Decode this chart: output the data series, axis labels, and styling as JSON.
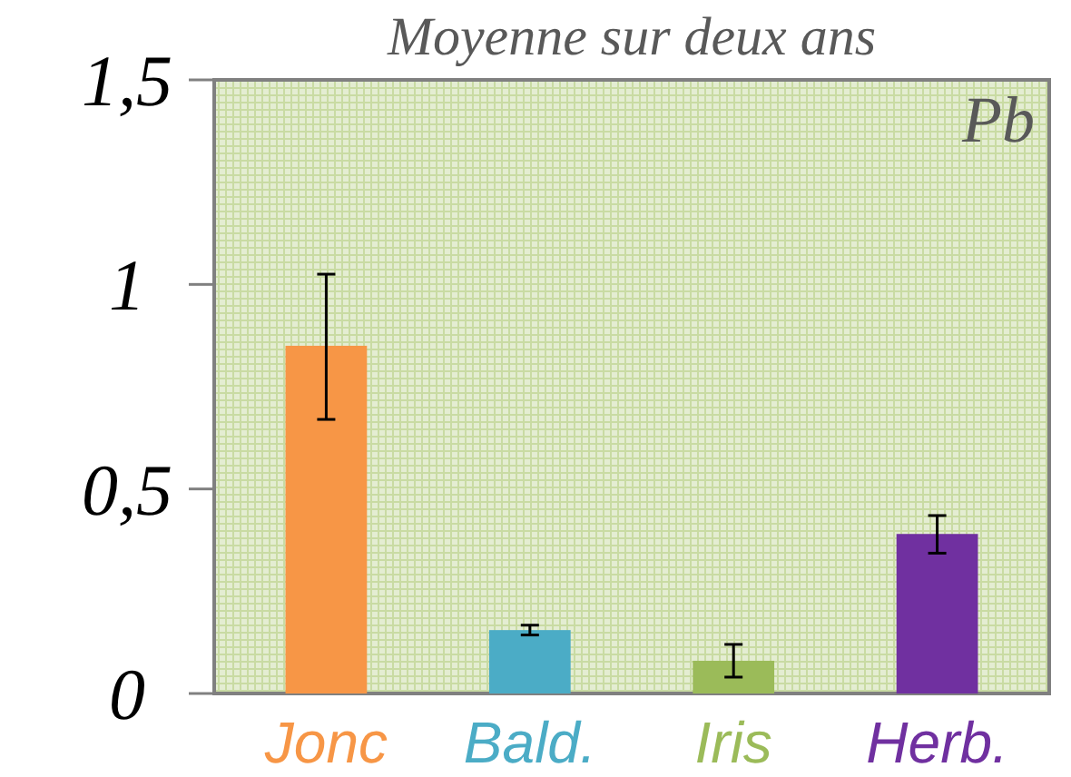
{
  "chart_data": {
    "type": "bar",
    "title": "Moyenne sur deux ans",
    "annotations": [
      "Pb"
    ],
    "categories": [
      "Jonc",
      "Bald.",
      "Iris",
      "Herb."
    ],
    "values": [
      0.85,
      0.155,
      0.08,
      0.39
    ],
    "colors": [
      "#f79646",
      "#4bacc6",
      "#9bbb59",
      "#7030a0"
    ],
    "errors": [
      [
        0.67,
        1.025
      ],
      [
        0.143,
        0.167
      ],
      [
        0.04,
        0.12
      ],
      [
        0.343,
        0.435
      ]
    ],
    "ylim": [
      0,
      1.5
    ],
    "yticks": [
      0,
      {
        "value": 0.5,
        "label": "0,5"
      },
      1,
      {
        "value": 1.5,
        "label": "1,5"
      }
    ],
    "grid": false
  }
}
